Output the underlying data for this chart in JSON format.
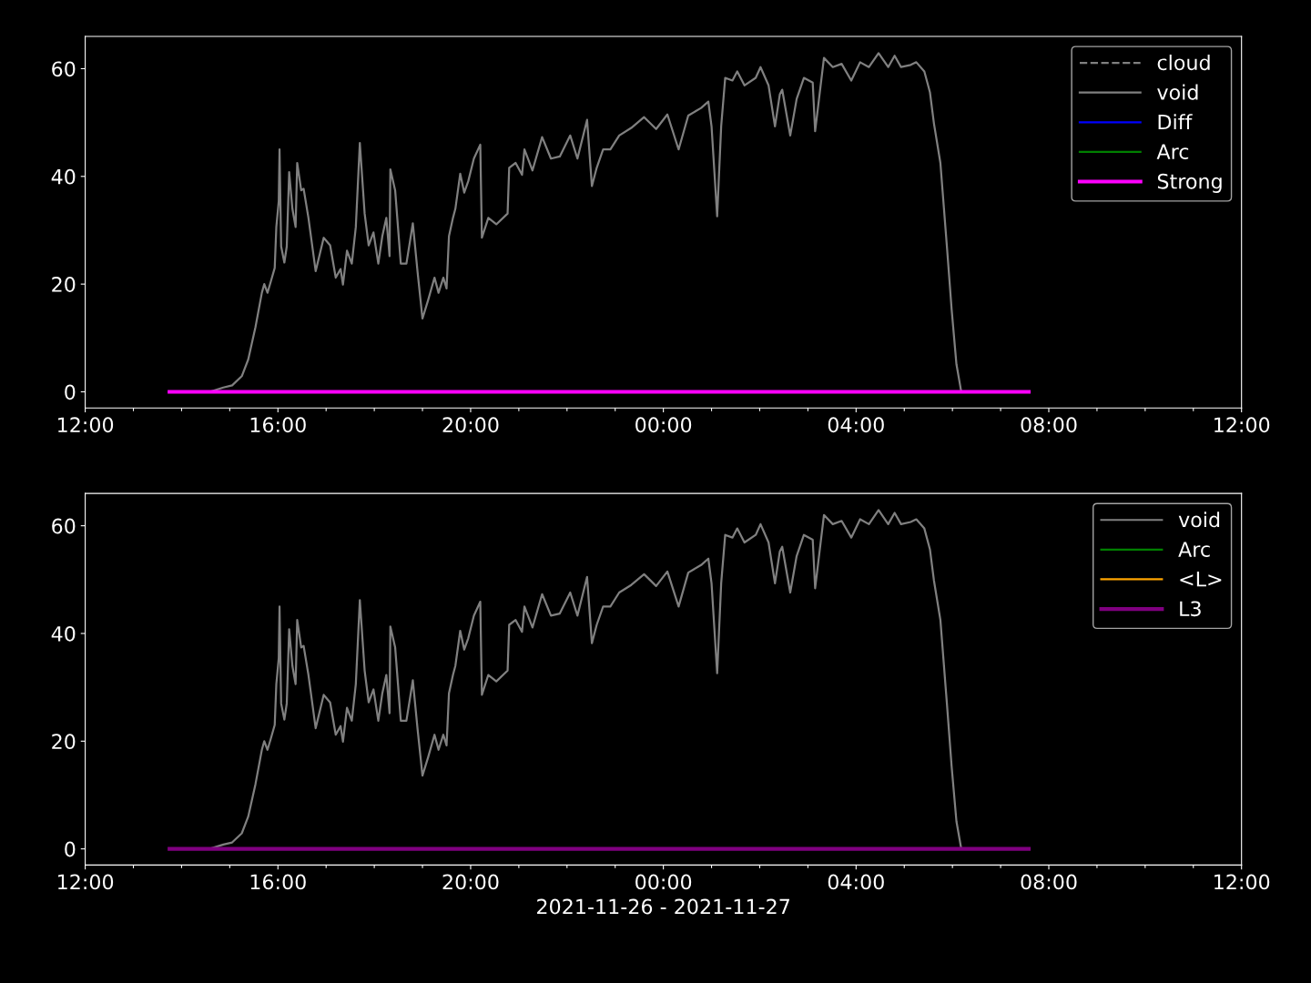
{
  "chart_data": [
    {
      "type": "line",
      "xlim": [
        "2021-11-26T12:00",
        "2021-11-27T12:00"
      ],
      "ylim": [
        -3,
        66
      ],
      "yticks": [
        0,
        20,
        40,
        60
      ],
      "xticks": [
        {
          "value": "2021-11-26T12:00",
          "label": "12:00"
        },
        {
          "value": "2021-11-26T13:00",
          "label": null
        },
        {
          "value": "2021-11-26T14:00",
          "label": null
        },
        {
          "value": "2021-11-26T15:00",
          "label": null
        },
        {
          "value": "2021-11-26T16:00",
          "label": "16:00"
        },
        {
          "value": "2021-11-26T17:00",
          "label": null
        },
        {
          "value": "2021-11-26T18:00",
          "label": null
        },
        {
          "value": "2021-11-26T19:00",
          "label": null
        },
        {
          "value": "2021-11-26T20:00",
          "label": "20:00"
        },
        {
          "value": "2021-11-26T21:00",
          "label": null
        },
        {
          "value": "2021-11-26T22:00",
          "label": null
        },
        {
          "value": "2021-11-26T23:00",
          "label": null
        },
        {
          "value": "2021-11-27T00:00",
          "label": "00:00"
        },
        {
          "value": "2021-11-27T01:00",
          "label": null
        },
        {
          "value": "2021-11-27T02:00",
          "label": null
        },
        {
          "value": "2021-11-27T03:00",
          "label": null
        },
        {
          "value": "2021-11-27T04:00",
          "label": "04:00"
        },
        {
          "value": "2021-11-27T05:00",
          "label": null
        },
        {
          "value": "2021-11-27T06:00",
          "label": null
        },
        {
          "value": "2021-11-27T07:00",
          "label": null
        },
        {
          "value": "2021-11-27T08:00",
          "label": "08:00"
        },
        {
          "value": "2021-11-27T09:00",
          "label": null
        },
        {
          "value": "2021-11-27T10:00",
          "label": null
        },
        {
          "value": "2021-11-27T11:00",
          "label": null
        },
        {
          "value": "2021-11-27T12:00",
          "label": "12:00"
        }
      ],
      "legend": "top right",
      "grid": false,
      "series": [
        {
          "name": "cloud",
          "color": "#808080",
          "line_style": "dashed"
        },
        {
          "name": "void",
          "color": "#808080",
          "line_style": "solid",
          "x": [
            "2021-11-26T13:45",
            "2021-11-26T14:35",
            "2021-11-26T14:52",
            "2021-11-26T15:03",
            "2021-11-26T15:15",
            "2021-11-26T15:23",
            "2021-11-26T15:32",
            "2021-11-26T15:40",
            "2021-11-26T15:43",
            "2021-11-26T15:47",
            "2021-11-26T15:51",
            "2021-11-26T15:56",
            "2021-11-26T15:58",
            "2021-11-26T16:01",
            "2021-11-26T16:02",
            "2021-11-26T16:04",
            "2021-11-26T16:08",
            "2021-11-26T16:11",
            "2021-11-26T16:14",
            "2021-11-26T16:18",
            "2021-11-26T16:22",
            "2021-11-26T16:24",
            "2021-11-26T16:29",
            "2021-11-26T16:32",
            "2021-11-26T16:38",
            "2021-11-26T16:47",
            "2021-11-26T16:57",
            "2021-11-26T17:05",
            "2021-11-26T17:12",
            "2021-11-26T17:18",
            "2021-11-26T17:21",
            "2021-11-26T17:26",
            "2021-11-26T17:32",
            "2021-11-26T17:37",
            "2021-11-26T17:42",
            "2021-11-26T17:48",
            "2021-11-26T17:53",
            "2021-11-26T17:59",
            "2021-11-26T18:05",
            "2021-11-26T18:10",
            "2021-11-26T18:15",
            "2021-11-26T18:19",
            "2021-11-26T18:20",
            "2021-11-26T18:26",
            "2021-11-26T18:33",
            "2021-11-26T18:40",
            "2021-11-26T18:48",
            "2021-11-26T18:54",
            "2021-11-26T19:00",
            "2021-11-26T19:07",
            "2021-11-26T19:15",
            "2021-11-26T19:20",
            "2021-11-26T19:26",
            "2021-11-26T19:30",
            "2021-11-26T19:33",
            "2021-11-26T19:38",
            "2021-11-26T19:41",
            "2021-11-26T19:47",
            "2021-11-26T19:52",
            "2021-11-26T19:57",
            "2021-11-26T20:04",
            "2021-11-26T20:12",
            "2021-11-26T20:14",
            "2021-11-26T20:22",
            "2021-11-26T20:32",
            "2021-11-26T20:46",
            "2021-11-26T20:48",
            "2021-11-26T20:56",
            "2021-11-26T21:04",
            "2021-11-26T21:07",
            "2021-11-26T21:17",
            "2021-11-26T21:29",
            "2021-11-26T21:40",
            "2021-11-26T21:51",
            "2021-11-26T22:04",
            "2021-11-26T22:13",
            "2021-11-26T22:25",
            "2021-11-26T22:31",
            "2021-11-26T22:37",
            "2021-11-26T22:45",
            "2021-11-26T22:54",
            "2021-11-26T23:05",
            "2021-11-26T23:20",
            "2021-11-26T23:36",
            "2021-11-26T23:51",
            "2021-11-27T00:05",
            "2021-11-27T00:19",
            "2021-11-27T00:31",
            "2021-11-27T00:47",
            "2021-11-27T00:56",
            "2021-11-27T01:00",
            "2021-11-27T01:07",
            "2021-11-27T01:12",
            "2021-11-27T01:17",
            "2021-11-27T01:26",
            "2021-11-27T01:32",
            "2021-11-27T01:41",
            "2021-11-27T01:55",
            "2021-11-27T02:01",
            "2021-11-27T02:11",
            "2021-11-27T02:19",
            "2021-11-27T02:25",
            "2021-11-27T02:28",
            "2021-11-27T02:38",
            "2021-11-27T02:46",
            "2021-11-27T02:55",
            "2021-11-27T03:06",
            "2021-11-27T03:09",
            "2021-11-27T03:20",
            "2021-11-27T03:31",
            "2021-11-27T03:42",
            "2021-11-27T03:54",
            "2021-11-27T04:05",
            "2021-11-27T04:16",
            "2021-11-27T04:28",
            "2021-11-27T04:40",
            "2021-11-27T04:48",
            "2021-11-27T04:56",
            "2021-11-27T05:08",
            "2021-11-27T05:15",
            "2021-11-27T05:25",
            "2021-11-27T05:32",
            "2021-11-27T05:37",
            "2021-11-27T05:45",
            "2021-11-27T05:53",
            "2021-11-27T05:59",
            "2021-11-27T06:05",
            "2021-11-27T06:11"
          ],
          "values": [
            0,
            0,
            0.8,
            1.2,
            2.9,
            6,
            12,
            18.4,
            20,
            18.4,
            20.4,
            23,
            30.6,
            35.4,
            45,
            27,
            24,
            27,
            40.8,
            34,
            30.6,
            42.5,
            37.4,
            37.7,
            32.3,
            22.4,
            28.6,
            27.2,
            21.2,
            22.8,
            19.9,
            26.2,
            23.8,
            30.6,
            46.2,
            33.1,
            27.2,
            29.6,
            23.8,
            28.9,
            32.3,
            25.2,
            41.3,
            37.4,
            23.8,
            23.8,
            31.3,
            22.1,
            13.6,
            17,
            21.2,
            18.4,
            21.2,
            19.2,
            28.9,
            32.3,
            34,
            40.5,
            37,
            39.1,
            43.3,
            45.9,
            28.6,
            32.3,
            31.1,
            33.1,
            41.6,
            42.5,
            40.3,
            45,
            41.1,
            47.3,
            43.3,
            43.7,
            47.6,
            43.3,
            50.5,
            38.2,
            41.6,
            45,
            45,
            47.6,
            49,
            51,
            48.8,
            51.5,
            45,
            51.3,
            52.7,
            53.9,
            49.3,
            32.6,
            49.3,
            58.3,
            57.8,
            59.5,
            56.9,
            58.3,
            60.3,
            56.9,
            49.3,
            55.2,
            56.1,
            47.6,
            54.4,
            58.3,
            57.4,
            48.4,
            62,
            60.3,
            60.9,
            57.8,
            61.2,
            60.3,
            62.9,
            60.3,
            62.4,
            60.3,
            60.7,
            61.2,
            59.5,
            55.6,
            49.8,
            42.5,
            27.2,
            15.3,
            5.1,
            0
          ]
        },
        {
          "name": "Diff",
          "color": "#0000ff",
          "line_style": "solid"
        },
        {
          "name": "Arc",
          "color": "#008000",
          "line_style": "solid"
        },
        {
          "name": "Strong",
          "color": "#ff00ff",
          "line_style": "solid",
          "x": [
            "2021-11-26T13:45",
            "2021-11-27T07:35"
          ],
          "values": [
            0,
            0
          ]
        }
      ]
    },
    {
      "type": "line",
      "xlim": [
        "2021-11-26T12:00",
        "2021-11-27T12:00"
      ],
      "ylim": [
        -3,
        66
      ],
      "yticks": [
        0,
        20,
        40,
        60
      ],
      "xticks": [
        {
          "value": "2021-11-26T12:00",
          "label": "12:00"
        },
        {
          "value": "2021-11-26T13:00",
          "label": null
        },
        {
          "value": "2021-11-26T14:00",
          "label": null
        },
        {
          "value": "2021-11-26T15:00",
          "label": null
        },
        {
          "value": "2021-11-26T16:00",
          "label": "16:00"
        },
        {
          "value": "2021-11-26T17:00",
          "label": null
        },
        {
          "value": "2021-11-26T18:00",
          "label": null
        },
        {
          "value": "2021-11-26T19:00",
          "label": null
        },
        {
          "value": "2021-11-26T20:00",
          "label": "20:00"
        },
        {
          "value": "2021-11-26T21:00",
          "label": null
        },
        {
          "value": "2021-11-26T22:00",
          "label": null
        },
        {
          "value": "2021-11-26T23:00",
          "label": null
        },
        {
          "value": "2021-11-27T00:00",
          "label": "00:00"
        },
        {
          "value": "2021-11-27T01:00",
          "label": null
        },
        {
          "value": "2021-11-27T02:00",
          "label": null
        },
        {
          "value": "2021-11-27T03:00",
          "label": null
        },
        {
          "value": "2021-11-27T04:00",
          "label": "04:00"
        },
        {
          "value": "2021-11-27T05:00",
          "label": null
        },
        {
          "value": "2021-11-27T06:00",
          "label": null
        },
        {
          "value": "2021-11-27T07:00",
          "label": null
        },
        {
          "value": "2021-11-27T08:00",
          "label": "08:00"
        },
        {
          "value": "2021-11-27T09:00",
          "label": null
        },
        {
          "value": "2021-11-27T10:00",
          "label": null
        },
        {
          "value": "2021-11-27T11:00",
          "label": null
        },
        {
          "value": "2021-11-27T12:00",
          "label": "12:00"
        }
      ],
      "xlabel": "2021-11-26 - 2021-11-27",
      "legend": "top right",
      "grid": false,
      "series": [
        {
          "name": "void",
          "color": "#808080",
          "line_style": "solid",
          "x": [
            "2021-11-26T13:45",
            "2021-11-26T14:35",
            "2021-11-26T14:52",
            "2021-11-26T15:03",
            "2021-11-26T15:15",
            "2021-11-26T15:23",
            "2021-11-26T15:32",
            "2021-11-26T15:40",
            "2021-11-26T15:43",
            "2021-11-26T15:47",
            "2021-11-26T15:51",
            "2021-11-26T15:56",
            "2021-11-26T15:58",
            "2021-11-26T16:01",
            "2021-11-26T16:02",
            "2021-11-26T16:04",
            "2021-11-26T16:08",
            "2021-11-26T16:11",
            "2021-11-26T16:14",
            "2021-11-26T16:18",
            "2021-11-26T16:22",
            "2021-11-26T16:24",
            "2021-11-26T16:29",
            "2021-11-26T16:32",
            "2021-11-26T16:38",
            "2021-11-26T16:47",
            "2021-11-26T16:57",
            "2021-11-26T17:05",
            "2021-11-26T17:12",
            "2021-11-26T17:18",
            "2021-11-26T17:21",
            "2021-11-26T17:26",
            "2021-11-26T17:32",
            "2021-11-26T17:37",
            "2021-11-26T17:42",
            "2021-11-26T17:48",
            "2021-11-26T17:53",
            "2021-11-26T17:59",
            "2021-11-26T18:05",
            "2021-11-26T18:10",
            "2021-11-26T18:15",
            "2021-11-26T18:19",
            "2021-11-26T18:20",
            "2021-11-26T18:26",
            "2021-11-26T18:33",
            "2021-11-26T18:40",
            "2021-11-26T18:48",
            "2021-11-26T18:54",
            "2021-11-26T19:00",
            "2021-11-26T19:07",
            "2021-11-26T19:15",
            "2021-11-26T19:20",
            "2021-11-26T19:26",
            "2021-11-26T19:30",
            "2021-11-26T19:33",
            "2021-11-26T19:38",
            "2021-11-26T19:41",
            "2021-11-26T19:47",
            "2021-11-26T19:52",
            "2021-11-26T19:57",
            "2021-11-26T20:04",
            "2021-11-26T20:12",
            "2021-11-26T20:14",
            "2021-11-26T20:22",
            "2021-11-26T20:32",
            "2021-11-26T20:46",
            "2021-11-26T20:48",
            "2021-11-26T20:56",
            "2021-11-26T21:04",
            "2021-11-26T21:07",
            "2021-11-26T21:17",
            "2021-11-26T21:29",
            "2021-11-26T21:40",
            "2021-11-26T21:51",
            "2021-11-26T22:04",
            "2021-11-26T22:13",
            "2021-11-26T22:25",
            "2021-11-26T22:31",
            "2021-11-26T22:37",
            "2021-11-26T22:45",
            "2021-11-26T22:54",
            "2021-11-26T23:05",
            "2021-11-26T23:20",
            "2021-11-26T23:36",
            "2021-11-26T23:51",
            "2021-11-27T00:05",
            "2021-11-27T00:19",
            "2021-11-27T00:31",
            "2021-11-27T00:47",
            "2021-11-27T00:56",
            "2021-11-27T01:00",
            "2021-11-27T01:07",
            "2021-11-27T01:12",
            "2021-11-27T01:17",
            "2021-11-27T01:26",
            "2021-11-27T01:32",
            "2021-11-27T01:41",
            "2021-11-27T01:55",
            "2021-11-27T02:01",
            "2021-11-27T02:11",
            "2021-11-27T02:19",
            "2021-11-27T02:25",
            "2021-11-27T02:28",
            "2021-11-27T02:38",
            "2021-11-27T02:46",
            "2021-11-27T02:55",
            "2021-11-27T03:06",
            "2021-11-27T03:09",
            "2021-11-27T03:20",
            "2021-11-27T03:31",
            "2021-11-27T03:42",
            "2021-11-27T03:54",
            "2021-11-27T04:05",
            "2021-11-27T04:16",
            "2021-11-27T04:28",
            "2021-11-27T04:40",
            "2021-11-27T04:48",
            "2021-11-27T04:56",
            "2021-11-27T05:08",
            "2021-11-27T05:15",
            "2021-11-27T05:25",
            "2021-11-27T05:32",
            "2021-11-27T05:37",
            "2021-11-27T05:45",
            "2021-11-27T05:53",
            "2021-11-27T05:59",
            "2021-11-27T06:05",
            "2021-11-27T06:11"
          ],
          "values": [
            0,
            0,
            0.8,
            1.2,
            2.9,
            6,
            12,
            18.4,
            20,
            18.4,
            20.4,
            23,
            30.6,
            35.4,
            45,
            27,
            24,
            27,
            40.8,
            34,
            30.6,
            42.5,
            37.4,
            37.7,
            32.3,
            22.4,
            28.6,
            27.2,
            21.2,
            22.8,
            19.9,
            26.2,
            23.8,
            30.6,
            46.2,
            33.1,
            27.2,
            29.6,
            23.8,
            28.9,
            32.3,
            25.2,
            41.3,
            37.4,
            23.8,
            23.8,
            31.3,
            22.1,
            13.6,
            17,
            21.2,
            18.4,
            21.2,
            19.2,
            28.9,
            32.3,
            34,
            40.5,
            37,
            39.1,
            43.3,
            45.9,
            28.6,
            32.3,
            31.1,
            33.1,
            41.6,
            42.5,
            40.3,
            45,
            41.1,
            47.3,
            43.3,
            43.7,
            47.6,
            43.3,
            50.5,
            38.2,
            41.6,
            45,
            45,
            47.6,
            49,
            51,
            48.8,
            51.5,
            45,
            51.3,
            52.7,
            53.9,
            49.3,
            32.6,
            49.3,
            58.3,
            57.8,
            59.5,
            56.9,
            58.3,
            60.3,
            56.9,
            49.3,
            55.2,
            56.1,
            47.6,
            54.4,
            58.3,
            57.4,
            48.4,
            62,
            60.3,
            60.9,
            57.8,
            61.2,
            60.3,
            62.9,
            60.3,
            62.4,
            60.3,
            60.7,
            61.2,
            59.5,
            55.6,
            49.8,
            42.5,
            27.2,
            15.3,
            5.1,
            0
          ]
        },
        {
          "name": "Arc",
          "color": "#008000",
          "line_style": "solid"
        },
        {
          "name": "<L>",
          "color": "#ffa500",
          "line_style": "solid"
        },
        {
          "name": "L3",
          "color": "#800080",
          "line_style": "solid",
          "x": [
            "2021-11-26T13:45",
            "2021-11-27T07:35"
          ],
          "values": [
            0,
            0
          ]
        }
      ]
    }
  ]
}
